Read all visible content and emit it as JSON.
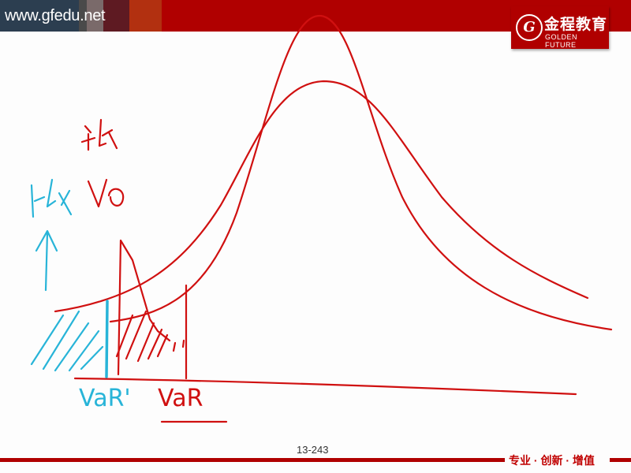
{
  "header": {
    "url": "www.gfedu.net",
    "band_colors": [
      "#2c3e50",
      "#4a4a4a",
      "#7a6a6a",
      "#5e1a22",
      "#b23010",
      "#b00000"
    ]
  },
  "logo": {
    "seal_letter": "G",
    "name_cn": "金程教育",
    "name_en": "GOLDEN FUTURE"
  },
  "annotations": {
    "var_prime": "VaR'",
    "var": "VaR",
    "ink_red": "#d01010",
    "ink_cyan": "#28b4d8"
  },
  "footer": {
    "page_number": "13-243",
    "slogan": "专业 · 创新 · 增值",
    "accent": "#b00000"
  }
}
